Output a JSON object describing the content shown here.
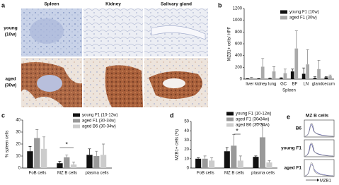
{
  "image_panel": {
    "panel": "a",
    "columns": [
      "Spleen",
      "Kidney",
      "Salivary gland"
    ],
    "rows": [
      [
        "young",
        "(10w)"
      ],
      [
        "aged",
        "(30w)"
      ]
    ]
  },
  "chart_data": [
    {
      "type": "bar",
      "panel": "b",
      "y_label": "MZB1+ cells/ HPF",
      "categories": [
        "liver",
        "kidney",
        "lung",
        "GC",
        "BF",
        "LN",
        "gland",
        "cecum"
      ],
      "group_label": "Spleen",
      "series": [
        {
          "name": "young F1 (10w)",
          "color": "#111111",
          "values": [
            5,
            5,
            10,
            15,
            130,
            90,
            20,
            30
          ],
          "errors": [
            5,
            5,
            10,
            10,
            40,
            100,
            20,
            10
          ]
        },
        {
          "name": "aged F1   (30w)",
          "color": "#aaaaaa",
          "values": [
            20,
            210,
            130,
            100,
            520,
            250,
            170,
            50
          ],
          "errors": [
            10,
            140,
            80,
            70,
            300,
            250,
            150,
            20
          ]
        }
      ],
      "ylim": [
        0,
        1200
      ],
      "yticks": [
        0,
        200,
        400,
        600,
        800,
        1000,
        1200
      ]
    },
    {
      "type": "bar",
      "panel": "c",
      "y_label": "% spleen cells",
      "categories": [
        "FoB cells",
        "MZ B cells",
        "plasma cells"
      ],
      "annotations": [
        "*"
      ],
      "series": [
        {
          "name": "young F1 (10-12w)",
          "color": "#111111",
          "values": [
            14,
            4,
            11
          ],
          "errors": [
            4,
            1.5,
            5
          ]
        },
        {
          "name": "aged F1  (30-34w)",
          "color": "#999999",
          "values": [
            25,
            9,
            10
          ],
          "errors": [
            7,
            2,
            4
          ]
        },
        {
          "name": "aged B6  (30-34w)",
          "color": "#cccccc",
          "values": [
            16,
            3,
            11
          ],
          "errors": [
            10,
            2,
            9
          ]
        }
      ],
      "ylim": [
        0,
        40
      ],
      "yticks": [
        0,
        10,
        20,
        30,
        40
      ]
    },
    {
      "type": "bar",
      "panel": "d",
      "y_label": "MZB1+ cells (%)",
      "categories": [
        "FoB cells",
        "MZ B cells",
        "plasma cells"
      ],
      "annotations": [
        "*",
        "*"
      ],
      "series": [
        {
          "name": "young F1 (10-12w)",
          "color": "#111111",
          "values": [
            10,
            18,
            12
          ],
          "errors": [
            1,
            4,
            1
          ]
        },
        {
          "name": "aged  F1 (30-34w)",
          "color": "#999999",
          "values": [
            10,
            24,
            33
          ],
          "errors": [
            3,
            12,
            14
          ]
        },
        {
          "name": "aged B6  (30-34w)",
          "color": "#cccccc",
          "values": [
            8,
            8,
            6
          ],
          "errors": [
            3,
            5,
            2
          ]
        }
      ],
      "ylim": [
        0,
        50
      ],
      "yticks": [
        0,
        10,
        20,
        30,
        40,
        50
      ]
    }
  ],
  "flow_panel": {
    "panel": "e",
    "title": "MZ B cells",
    "rows": [
      "B6",
      "young F1",
      "aged F1"
    ],
    "x_label": "MZB1"
  }
}
